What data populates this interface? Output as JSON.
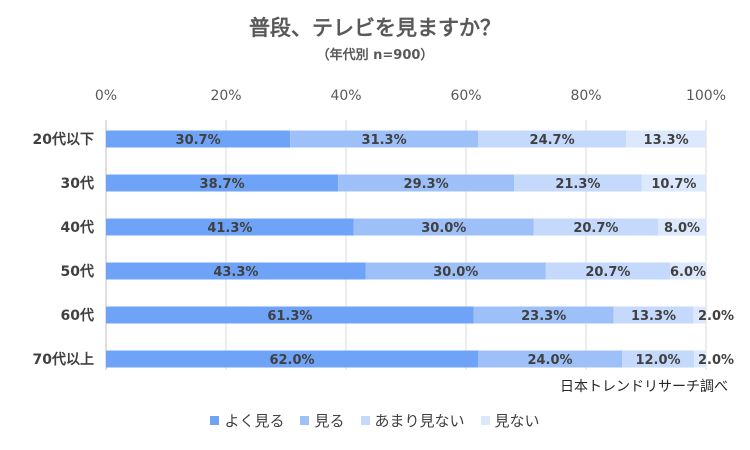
{
  "chart_data": {
    "type": "bar",
    "orientation": "horizontal",
    "stacked": true,
    "title": "普段、テレビを見ますか？",
    "subtitle": "（年代別  n=900）",
    "categories": [
      "20代以下",
      "30代",
      "40代",
      "50代",
      "60代",
      "70代以上"
    ],
    "series": [
      {
        "name": "よく見る",
        "color": "#6fa3f7",
        "values": [
          30.7,
          38.7,
          41.3,
          43.3,
          61.3,
          62.0
        ]
      },
      {
        "name": "見る",
        "color": "#9ec0f9",
        "values": [
          31.3,
          29.3,
          30.0,
          30.0,
          23.3,
          24.0
        ]
      },
      {
        "name": "あまり見ない",
        "color": "#c4d9fb",
        "values": [
          24.7,
          21.3,
          20.7,
          20.7,
          13.3,
          12.0
        ]
      },
      {
        "name": "見ない",
        "color": "#dce9fd",
        "values": [
          13.3,
          10.7,
          8.0,
          6.0,
          2.0,
          2.0
        ]
      }
    ],
    "data_labels": [
      [
        "30.7%",
        "38.7%",
        "41.3%",
        "43.3%",
        "61.3%",
        "62.0%"
      ],
      [
        "31.3%",
        "29.3%",
        "30.0%",
        "30.0%",
        "23.3%",
        "24.0%"
      ],
      [
        "24.7%",
        "21.3%",
        "20.7%",
        "20.7%",
        "13.3%",
        "12.0%"
      ],
      [
        "13.3%",
        "10.7%",
        "8.0%",
        "6.0%",
        "2.0%",
        "2.0%"
      ]
    ],
    "xlim": [
      0,
      100
    ],
    "xticks": [
      0,
      20,
      40,
      60,
      80,
      100
    ],
    "xtick_labels": [
      "0%",
      "20%",
      "40%",
      "60%",
      "80%",
      "100%"
    ],
    "grid": true,
    "legend_position": "bottom"
  },
  "source": "日本トレンドリサーチ調べ"
}
